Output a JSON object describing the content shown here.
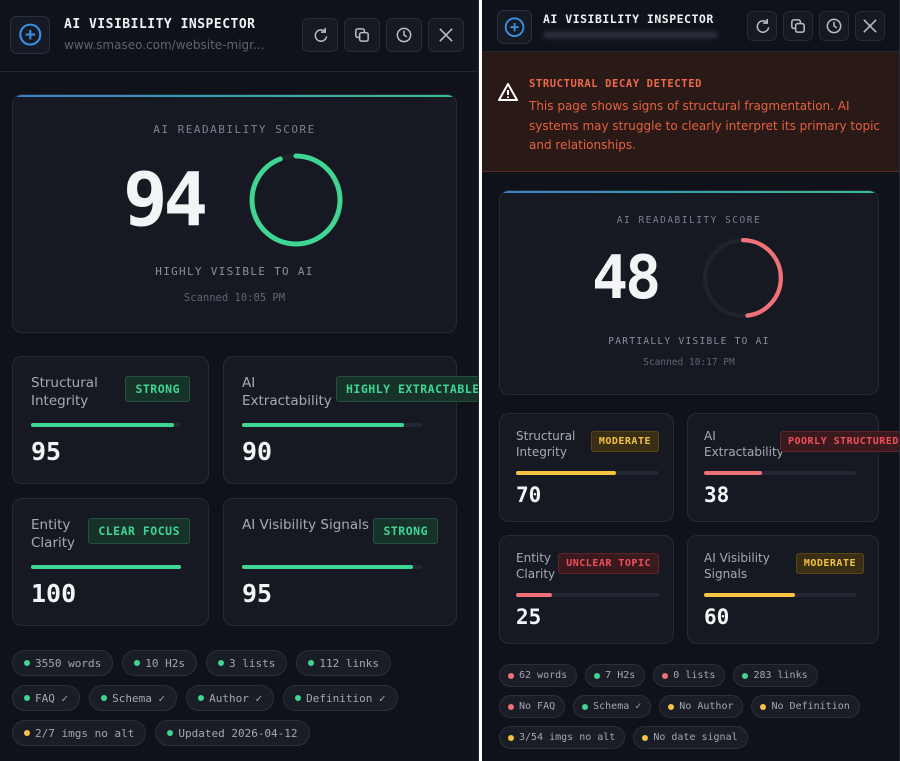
{
  "colors": {
    "green": "#3fd694",
    "yellow": "#f5c242",
    "red": "#f07178",
    "accent": "#3a8fe0"
  },
  "panels": [
    {
      "id": "pL",
      "title": "AI VISIBILITY INSPECTOR",
      "subtitle": "www.smaseo.com/website-migr...",
      "buttons": [
        {
          "icon": "refresh-icon"
        },
        {
          "icon": "copy-icon"
        },
        {
          "icon": "history-icon"
        },
        {
          "icon": "close-icon"
        }
      ],
      "score": {
        "label": "AI READABILITY SCORE",
        "value": "94",
        "percent": 94,
        "color": "green",
        "visibility": "HIGHLY VISIBLE TO AI",
        "scanned": "Scanned 10:05 PM"
      },
      "metrics": [
        {
          "label": "Structural\nIntegrity",
          "badge": "STRONG",
          "status": "green",
          "value": "95",
          "percent": 95
        },
        {
          "label": "AI\nExtractability",
          "badge": "HIGHLY EXTRACTABLE",
          "status": "green",
          "value": "90",
          "percent": 90
        },
        {
          "label": "Entity\nClarity",
          "badge": "CLEAR FOCUS",
          "status": "green",
          "value": "100",
          "percent": 100
        },
        {
          "label": "AI Visibility Signals",
          "badge": "STRONG",
          "status": "green",
          "value": "95",
          "percent": 95
        }
      ],
      "chips": [
        {
          "text": "3550 words",
          "status": "green"
        },
        {
          "text": "10 H2s",
          "status": "green"
        },
        {
          "text": "3 lists",
          "status": "green"
        },
        {
          "text": "112 links",
          "status": "green"
        },
        {
          "text": "FAQ ✓",
          "status": "green"
        },
        {
          "text": "Schema ✓",
          "status": "green"
        },
        {
          "text": "Author ✓",
          "status": "green"
        },
        {
          "text": "Definition ✓",
          "status": "green"
        },
        {
          "text": "2/7 imgs no alt",
          "status": "yellow"
        },
        {
          "text": "Updated 2026-04-12",
          "status": "green"
        }
      ]
    },
    {
      "id": "pR",
      "title": "AI VISIBILITY INSPECTOR",
      "buttons": [
        {
          "icon": "refresh-icon"
        },
        {
          "icon": "copy-icon"
        },
        {
          "icon": "history-icon"
        },
        {
          "icon": "close-icon"
        }
      ],
      "alert": {
        "title": "STRUCTURAL DECAY DETECTED",
        "body": "This page shows signs of structural fragmentation. AI systems may struggle to clearly interpret its primary topic and relationships."
      },
      "score": {
        "label": "AI READABILITY SCORE",
        "value": "48",
        "percent": 48,
        "color": "red",
        "visibility": "PARTIALLY VISIBLE TO AI",
        "scanned": "Scanned 10:17 PM"
      },
      "metrics": [
        {
          "label": "Structural\nIntegrity",
          "badge": "MODERATE",
          "status": "yellow",
          "value": "70",
          "percent": 70
        },
        {
          "label": "AI\nExtractability",
          "badge": "POORLY STRUCTURED",
          "status": "red",
          "value": "38",
          "percent": 38
        },
        {
          "label": "Entity\nClarity",
          "badge": "UNCLEAR TOPIC",
          "status": "red",
          "value": "25",
          "percent": 25
        },
        {
          "label": "AI Visibility\nSignals",
          "badge": "MODERATE",
          "status": "yellow",
          "value": "60",
          "percent": 60
        }
      ],
      "chips": [
        {
          "text": "62 words",
          "status": "red"
        },
        {
          "text": "7 H2s",
          "status": "green"
        },
        {
          "text": "0 lists",
          "status": "red"
        },
        {
          "text": "283 links",
          "status": "green"
        },
        {
          "text": "No FAQ",
          "status": "red"
        },
        {
          "text": "Schema ✓",
          "status": "green"
        },
        {
          "text": "No Author",
          "status": "yellow"
        },
        {
          "text": "No Definition",
          "status": "yellow"
        },
        {
          "text": "3/54 imgs no alt",
          "status": "yellow"
        },
        {
          "text": "No date signal",
          "status": "yellow"
        }
      ]
    }
  ]
}
